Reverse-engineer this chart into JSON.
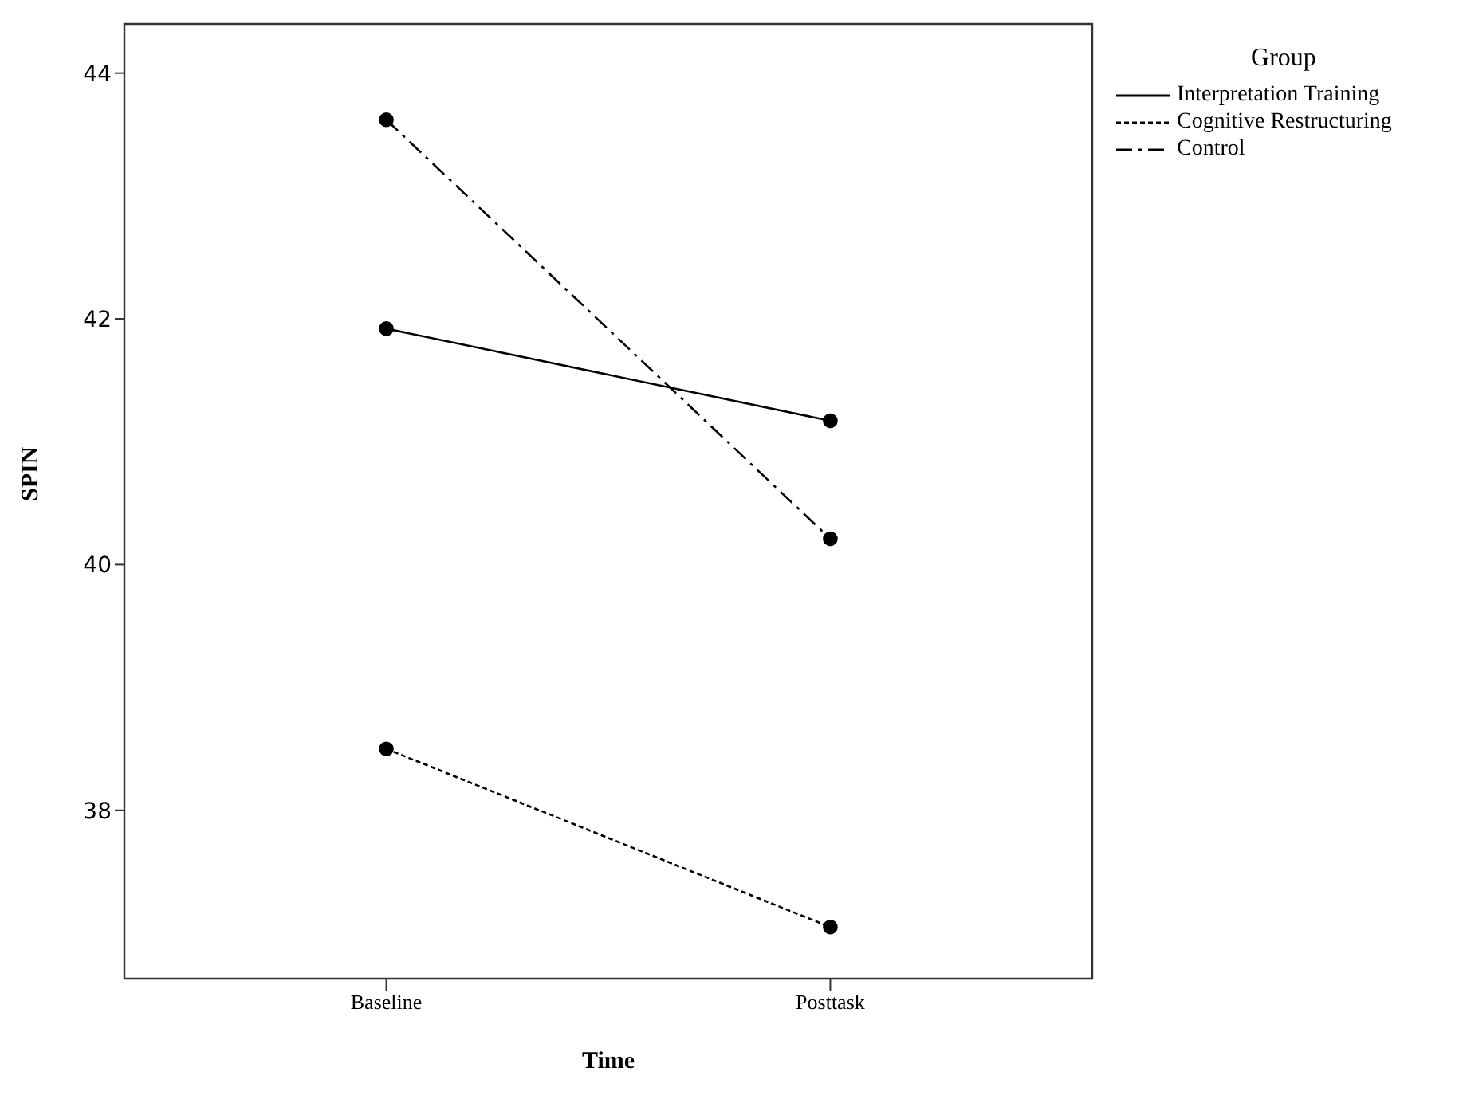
{
  "chart_data": {
    "type": "line",
    "xlabel": "Time",
    "ylabel": "SPIN",
    "legend_title": "Group",
    "categories": [
      "Baseline",
      "Posttask"
    ],
    "series": [
      {
        "name": "Interpretation Training",
        "color": "#000000",
        "values": [
          41.92,
          41.17
        ],
        "line_style": "solid"
      },
      {
        "name": "Cognitive Restructuring",
        "color": "#000000",
        "values": [
          38.5,
          37.05
        ],
        "line_style": "dotted"
      },
      {
        "name": "Control",
        "color": "#000000",
        "values": [
          43.62,
          40.21
        ],
        "line_style": "dashdot"
      }
    ],
    "ylim": [
      36.63,
      44.4
    ],
    "yticks": [
      38,
      40,
      42,
      44
    ],
    "legend": "top right",
    "marker": "circle"
  }
}
